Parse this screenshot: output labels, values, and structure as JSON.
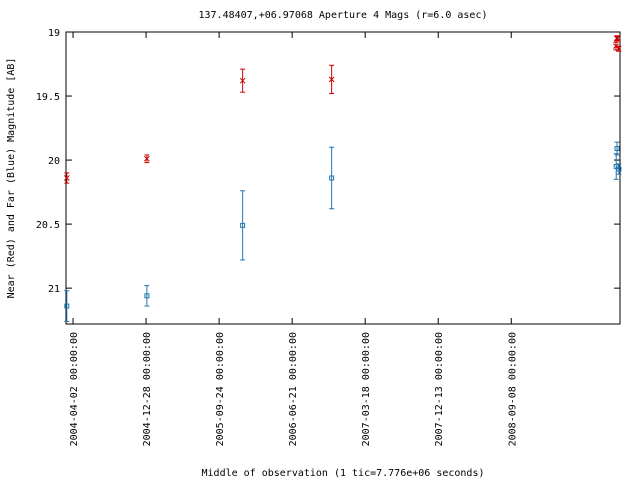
{
  "chart_data": {
    "type": "scatter",
    "title": "137.48407,+06.97068   Aperture 4 Mags (r=6.0 asec)",
    "xlabel": "Middle of observation (1 tic=7.776e+06 seconds)",
    "ylabel": "Near (Red) and Far (Blue) Magnitude [AB]",
    "ylim": [
      21.28,
      19.0
    ],
    "y_ticks": [
      19,
      19.5,
      20,
      20.5,
      21
    ],
    "y_tick_labels": [
      "19",
      "19.5",
      "20",
      "20.5",
      "21"
    ],
    "xlim": [
      "2004-03-07",
      "2009-10-15"
    ],
    "x_ticks": [
      "2004-04-02",
      "2004-12-28",
      "2005-09-24",
      "2006-06-21",
      "2007-03-18",
      "2007-12-13",
      "2008-09-08"
    ],
    "x_tick_labels": [
      "2004-04-02 00:00:00",
      "2004-12-28 00:00:00",
      "2005-09-24 00:00:00",
      "2006-06-21 00:00:00",
      "2007-03-18 00:00:00",
      "2007-12-13 00:00:00",
      "2008-09-08 00:00:00"
    ],
    "grid": false,
    "legend": "none",
    "series": [
      {
        "color": "#cc0000",
        "marker": "x",
        "points": [
          {
            "x": "2004-03-10",
            "y": 20.14,
            "err": 0.04
          },
          {
            "x": "2004-12-31",
            "y": 19.99,
            "err": 0.03
          },
          {
            "x": "2005-12-20",
            "y": 19.38,
            "err": 0.09
          },
          {
            "x": "2006-11-14",
            "y": 19.37,
            "err": 0.11
          },
          {
            "x": "2009-09-30",
            "y": 19.11,
            "err": 0.03
          },
          {
            "x": "2009-10-03",
            "y": 19.05,
            "err": 0.02
          },
          {
            "x": "2009-10-06",
            "y": 19.05,
            "err": 0.02
          },
          {
            "x": "2009-10-10",
            "y": 19.13,
            "err": 0.02
          }
        ]
      },
      {
        "color": "#1f77b4",
        "marker": "square",
        "points": [
          {
            "x": "2004-03-10",
            "y": 21.14,
            "err": 0.12
          },
          {
            "x": "2004-12-31",
            "y": 21.06,
            "err": 0.08
          },
          {
            "x": "2005-12-20",
            "y": 20.51,
            "err": 0.27
          },
          {
            "x": "2006-11-14",
            "y": 20.14,
            "err": 0.24
          },
          {
            "x": "2009-10-01",
            "y": 20.05,
            "err": 0.1
          },
          {
            "x": "2009-10-04",
            "y": 19.91,
            "err": 0.05
          },
          {
            "x": "2009-10-11",
            "y": 20.07,
            "err": 0.04
          }
        ]
      }
    ]
  }
}
